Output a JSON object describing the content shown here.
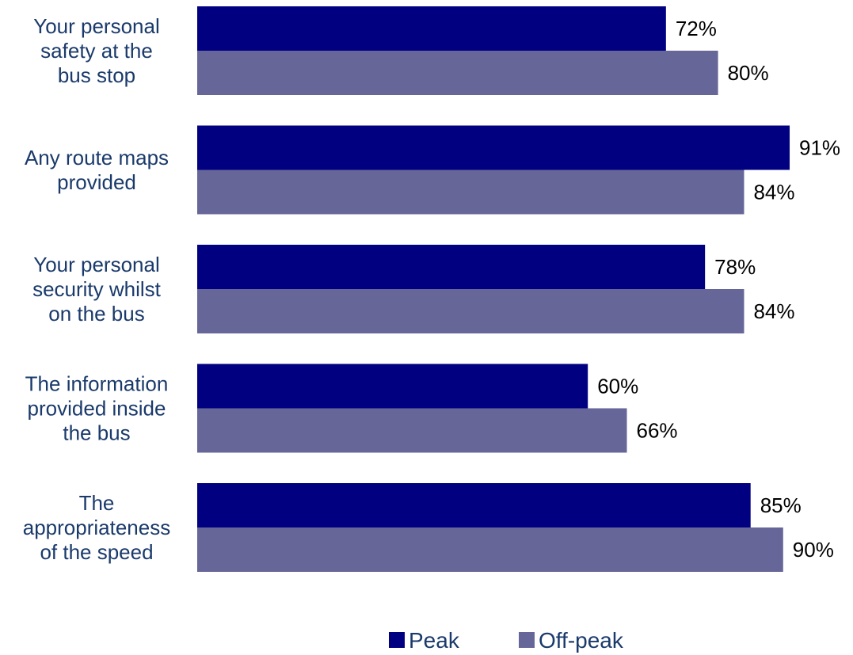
{
  "chart_data": {
    "type": "bar",
    "orientation": "horizontal",
    "categories": [
      [
        "Your personal",
        "safety at the",
        "bus stop"
      ],
      [
        "Any route maps",
        "provided"
      ],
      [
        "Your personal",
        "security whilst",
        "on the bus"
      ],
      [
        "The information",
        "provided inside",
        "the bus"
      ],
      [
        "The",
        "appropriateness",
        "of the speed"
      ]
    ],
    "series": [
      {
        "name": "Peak",
        "color": "#000080",
        "values": [
          72,
          91,
          78,
          60,
          85
        ],
        "labels": [
          "72%",
          "91%",
          "78%",
          "60%",
          "85%"
        ]
      },
      {
        "name": "Off-peak",
        "color": "#666699",
        "values": [
          80,
          84,
          84,
          66,
          90
        ],
        "labels": [
          "80%",
          "84%",
          "84%",
          "66%",
          "90%"
        ]
      }
    ],
    "xlim": [
      0,
      100
    ],
    "grid": false,
    "legend_position": "bottom"
  }
}
